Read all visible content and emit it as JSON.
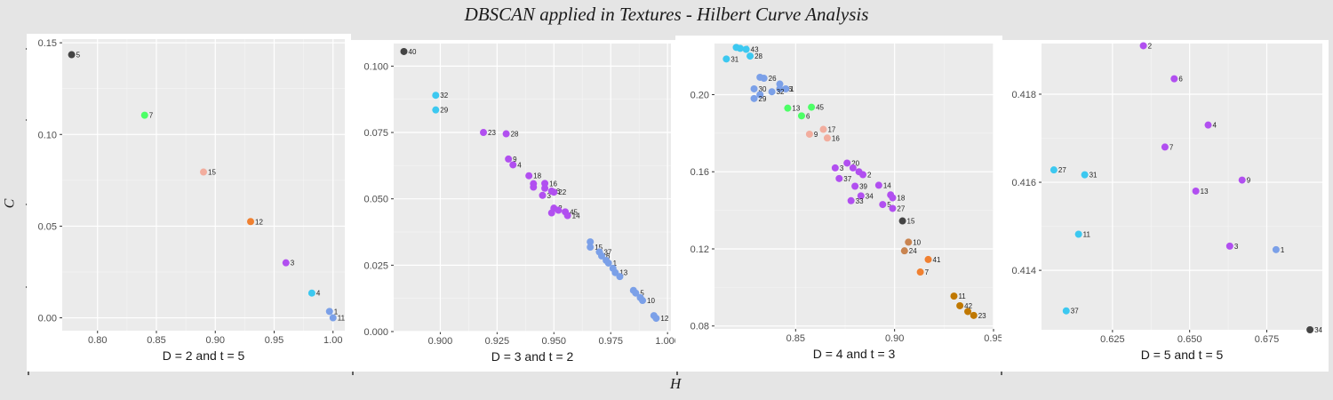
{
  "figure": {
    "title": "DBSCAN applied in Textures - Hilbert Curve Analysis",
    "xlabel": "H",
    "ylabel": "C"
  },
  "chart_data": [
    {
      "type": "scatter",
      "xlabel": "D = 2 and t = 5",
      "xlim": [
        0.77,
        1.01
      ],
      "ylim": [
        -0.007,
        0.152
      ],
      "xticks": [
        0.8,
        0.85,
        0.9,
        0.95,
        1.0
      ],
      "xtick_labels": [
        "0.80",
        "0.85",
        "0.90",
        "0.95",
        "1.00"
      ],
      "yticks": [
        0.0,
        0.05,
        0.1,
        0.15
      ],
      "ytick_labels": [
        "0.00",
        "0.05",
        "0.10",
        "0.15"
      ],
      "grid": true,
      "points": [
        {
          "x": 0.778,
          "y": 0.1435,
          "label": "5",
          "color": "#444444"
        },
        {
          "x": 0.84,
          "y": 0.1105,
          "label": "7",
          "color": "#4cff66"
        },
        {
          "x": 0.89,
          "y": 0.0795,
          "label": "15",
          "color": "#f2ad9e"
        },
        {
          "x": 0.93,
          "y": 0.0525,
          "label": "12",
          "color": "#f08030"
        },
        {
          "x": 0.96,
          "y": 0.03,
          "label": "3",
          "color": "#b14ff0"
        },
        {
          "x": 0.982,
          "y": 0.0135,
          "label": "4",
          "color": "#3cc8f0"
        },
        {
          "x": 0.997,
          "y": 0.0035,
          "label": "1",
          "color": "#7ba0e8"
        },
        {
          "x": 1.0,
          "y": 0.0,
          "label": "11",
          "color": "#7ba0e8"
        }
      ]
    },
    {
      "type": "scatter",
      "xlabel": "D = 3 and t = 2",
      "xlim": [
        0.8795,
        1.0015
      ],
      "ylim": [
        0.0,
        0.1085
      ],
      "xticks": [
        0.9,
        0.925,
        0.95,
        0.975,
        1.0
      ],
      "xtick_labels": [
        "0.900",
        "0.925",
        "0.950",
        "0.975",
        "1.000"
      ],
      "yticks": [
        0.0,
        0.025,
        0.05,
        0.075,
        0.1
      ],
      "ytick_labels": [
        "0.000",
        "0.025",
        "0.050",
        "0.075",
        "0.100"
      ],
      "grid": true,
      "points": [
        {
          "x": 0.884,
          "y": 0.1055,
          "label": "40",
          "color": "#444444"
        },
        {
          "x": 0.898,
          "y": 0.089,
          "label": "32",
          "color": "#3cc8f0"
        },
        {
          "x": 0.898,
          "y": 0.0835,
          "label": "29",
          "color": "#3cc8f0"
        },
        {
          "x": 0.919,
          "y": 0.075,
          "label": "23",
          "color": "#b14ff0"
        },
        {
          "x": 0.929,
          "y": 0.0745,
          "label": "28",
          "color": "#b14ff0"
        },
        {
          "x": 0.93,
          "y": 0.065,
          "label": "9",
          "color": "#b14ff0"
        },
        {
          "x": 0.932,
          "y": 0.0628,
          "label": "4",
          "color": "#b14ff0"
        },
        {
          "x": 0.939,
          "y": 0.0587,
          "label": "18",
          "color": "#b14ff0"
        },
        {
          "x": 0.941,
          "y": 0.0557,
          "label": "",
          "color": "#b14ff0"
        },
        {
          "x": 0.941,
          "y": 0.0544,
          "label": "",
          "color": "#b14ff0"
        },
        {
          "x": 0.946,
          "y": 0.0558,
          "label": "16",
          "color": "#b14ff0"
        },
        {
          "x": 0.946,
          "y": 0.054,
          "label": "",
          "color": "#b14ff0"
        },
        {
          "x": 0.945,
          "y": 0.0513,
          "label": "3",
          "color": "#b14ff0"
        },
        {
          "x": 0.949,
          "y": 0.0529,
          "label": "6",
          "color": "#b14ff0"
        },
        {
          "x": 0.95,
          "y": 0.0525,
          "label": "22",
          "color": "#b14ff0"
        },
        {
          "x": 0.95,
          "y": 0.0465,
          "label": "2",
          "color": "#b14ff0"
        },
        {
          "x": 0.949,
          "y": 0.0447,
          "label": "",
          "color": "#b14ff0"
        },
        {
          "x": 0.952,
          "y": 0.0457,
          "label": "",
          "color": "#b14ff0"
        },
        {
          "x": 0.955,
          "y": 0.0451,
          "label": "45",
          "color": "#b14ff0"
        },
        {
          "x": 0.956,
          "y": 0.0437,
          "label": "14",
          "color": "#b14ff0"
        },
        {
          "x": 0.966,
          "y": 0.0338,
          "label": "",
          "color": "#7ba0e8"
        },
        {
          "x": 0.966,
          "y": 0.0318,
          "label": "15",
          "color": "#7ba0e8"
        },
        {
          "x": 0.97,
          "y": 0.03,
          "label": "37",
          "color": "#7ba0e8"
        },
        {
          "x": 0.971,
          "y": 0.0285,
          "label": "6",
          "color": "#7ba0e8"
        },
        {
          "x": 0.973,
          "y": 0.0268,
          "label": "",
          "color": "#7ba0e8"
        },
        {
          "x": 0.974,
          "y": 0.0258,
          "label": "1",
          "color": "#7ba0e8"
        },
        {
          "x": 0.976,
          "y": 0.0238,
          "label": "",
          "color": "#7ba0e8"
        },
        {
          "x": 0.977,
          "y": 0.0222,
          "label": "13",
          "color": "#7ba0e8"
        },
        {
          "x": 0.979,
          "y": 0.0207,
          "label": "",
          "color": "#7ba0e8"
        },
        {
          "x": 0.985,
          "y": 0.0155,
          "label": "",
          "color": "#7ba0e8"
        },
        {
          "x": 0.986,
          "y": 0.0145,
          "label": "5",
          "color": "#7ba0e8"
        },
        {
          "x": 0.988,
          "y": 0.0128,
          "label": "",
          "color": "#7ba0e8"
        },
        {
          "x": 0.989,
          "y": 0.0117,
          "label": "10",
          "color": "#7ba0e8"
        },
        {
          "x": 0.994,
          "y": 0.006,
          "label": "",
          "color": "#7ba0e8"
        },
        {
          "x": 0.995,
          "y": 0.005,
          "label": "12",
          "color": "#7ba0e8"
        }
      ]
    },
    {
      "type": "scatter",
      "xlabel": "D = 4 and t = 3",
      "xlim": [
        0.809,
        0.95
      ],
      "ylim": [
        0.0785,
        0.2265
      ],
      "xticks": [
        0.85,
        0.9,
        0.95
      ],
      "xtick_labels": [
        "0.85",
        "0.90",
        "0.95"
      ],
      "yticks": [
        0.08,
        0.12,
        0.16,
        0.2
      ],
      "ytick_labels": [
        "0.08",
        "0.12",
        "0.16",
        "0.20"
      ],
      "grid": true,
      "points": [
        {
          "x": 0.82,
          "y": 0.2245,
          "label": "",
          "color": "#3cc8f0"
        },
        {
          "x": 0.822,
          "y": 0.224,
          "label": "4",
          "color": "#3cc8f0"
        },
        {
          "x": 0.825,
          "y": 0.2235,
          "label": "43",
          "color": "#3cc8f0"
        },
        {
          "x": 0.815,
          "y": 0.2185,
          "label": "31",
          "color": "#3cc8f0"
        },
        {
          "x": 0.827,
          "y": 0.22,
          "label": "28",
          "color": "#3cc8f0"
        },
        {
          "x": 0.832,
          "y": 0.209,
          "label": "",
          "color": "#7ba0e8"
        },
        {
          "x": 0.834,
          "y": 0.2085,
          "label": "26",
          "color": "#7ba0e8"
        },
        {
          "x": 0.842,
          "y": 0.2055,
          "label": "",
          "color": "#7ba0e8"
        },
        {
          "x": 0.842,
          "y": 0.203,
          "label": "36",
          "color": "#7ba0e8"
        },
        {
          "x": 0.845,
          "y": 0.203,
          "label": "1",
          "color": "#7ba0e8"
        },
        {
          "x": 0.829,
          "y": 0.203,
          "label": "30",
          "color": "#7ba0e8"
        },
        {
          "x": 0.838,
          "y": 0.2015,
          "label": "32",
          "color": "#7ba0e8"
        },
        {
          "x": 0.832,
          "y": 0.2,
          "label": "",
          "color": "#7ba0e8"
        },
        {
          "x": 0.829,
          "y": 0.198,
          "label": "29",
          "color": "#7ba0e8"
        },
        {
          "x": 0.846,
          "y": 0.193,
          "label": "13",
          "color": "#4cff66"
        },
        {
          "x": 0.858,
          "y": 0.1935,
          "label": "45",
          "color": "#4cff66"
        },
        {
          "x": 0.853,
          "y": 0.189,
          "label": "6",
          "color": "#4cff66"
        },
        {
          "x": 0.864,
          "y": 0.182,
          "label": "17",
          "color": "#f2ad9e"
        },
        {
          "x": 0.857,
          "y": 0.1795,
          "label": "9",
          "color": "#f2ad9e"
        },
        {
          "x": 0.866,
          "y": 0.1775,
          "label": "16",
          "color": "#f2ad9e"
        },
        {
          "x": 0.876,
          "y": 0.1645,
          "label": "20",
          "color": "#b14ff0"
        },
        {
          "x": 0.879,
          "y": 0.162,
          "label": "",
          "color": "#b14ff0"
        },
        {
          "x": 0.87,
          "y": 0.162,
          "label": "3",
          "color": "#b14ff0"
        },
        {
          "x": 0.882,
          "y": 0.16,
          "label": "",
          "color": "#b14ff0"
        },
        {
          "x": 0.884,
          "y": 0.1585,
          "label": "2",
          "color": "#b14ff0"
        },
        {
          "x": 0.872,
          "y": 0.1565,
          "label": "37",
          "color": "#b14ff0"
        },
        {
          "x": 0.892,
          "y": 0.153,
          "label": "14",
          "color": "#b14ff0"
        },
        {
          "x": 0.88,
          "y": 0.1525,
          "label": "39",
          "color": "#b14ff0"
        },
        {
          "x": 0.898,
          "y": 0.148,
          "label": "",
          "color": "#b14ff0"
        },
        {
          "x": 0.899,
          "y": 0.1465,
          "label": "18",
          "color": "#b14ff0"
        },
        {
          "x": 0.883,
          "y": 0.1475,
          "label": "34",
          "color": "#b14ff0"
        },
        {
          "x": 0.878,
          "y": 0.145,
          "label": "33",
          "color": "#b14ff0"
        },
        {
          "x": 0.894,
          "y": 0.143,
          "label": "5",
          "color": "#b14ff0"
        },
        {
          "x": 0.899,
          "y": 0.141,
          "label": "27",
          "color": "#b14ff0"
        },
        {
          "x": 0.904,
          "y": 0.1345,
          "label": "15",
          "color": "#444444"
        },
        {
          "x": 0.907,
          "y": 0.1235,
          "label": "10",
          "color": "#c98450"
        },
        {
          "x": 0.905,
          "y": 0.119,
          "label": "24",
          "color": "#c98450"
        },
        {
          "x": 0.917,
          "y": 0.1145,
          "label": "41",
          "color": "#f08030"
        },
        {
          "x": 0.913,
          "y": 0.108,
          "label": "7",
          "color": "#f08030"
        },
        {
          "x": 0.93,
          "y": 0.0955,
          "label": "11",
          "color": "#c07800"
        },
        {
          "x": 0.933,
          "y": 0.0905,
          "label": "42",
          "color": "#c07800"
        },
        {
          "x": 0.937,
          "y": 0.0875,
          "label": "",
          "color": "#c07800"
        },
        {
          "x": 0.94,
          "y": 0.0855,
          "label": "23",
          "color": "#c07800"
        }
      ]
    },
    {
      "type": "scatter",
      "xlabel": "D = 5 and t = 5",
      "xlim": [
        0.602,
        0.693
      ],
      "ylim": [
        0.41265,
        0.41915
      ],
      "xticks": [
        0.625,
        0.65,
        0.675
      ],
      "xtick_labels": [
        "0.625",
        "0.650",
        "0.675"
      ],
      "yticks": [
        0.414,
        0.416,
        0.418
      ],
      "ytick_labels": [
        "0.414",
        "0.416",
        "0.418"
      ],
      "grid": true,
      "points": [
        {
          "x": 0.635,
          "y": 0.4191,
          "label": "2",
          "color": "#b14ff0"
        },
        {
          "x": 0.645,
          "y": 0.41835,
          "label": "6",
          "color": "#b14ff0"
        },
        {
          "x": 0.656,
          "y": 0.4173,
          "label": "4",
          "color": "#b14ff0"
        },
        {
          "x": 0.642,
          "y": 0.4168,
          "label": "7",
          "color": "#b14ff0"
        },
        {
          "x": 0.667,
          "y": 0.41605,
          "label": "9",
          "color": "#b14ff0"
        },
        {
          "x": 0.652,
          "y": 0.4158,
          "label": "13",
          "color": "#b14ff0"
        },
        {
          "x": 0.663,
          "y": 0.41455,
          "label": "3",
          "color": "#b14ff0"
        },
        {
          "x": 0.606,
          "y": 0.41628,
          "label": "27",
          "color": "#3cc8f0"
        },
        {
          "x": 0.616,
          "y": 0.41617,
          "label": "31",
          "color": "#3cc8f0"
        },
        {
          "x": 0.614,
          "y": 0.41482,
          "label": "11",
          "color": "#3cc8f0"
        },
        {
          "x": 0.61,
          "y": 0.41308,
          "label": "37",
          "color": "#3cc8f0"
        },
        {
          "x": 0.678,
          "y": 0.41447,
          "label": "1",
          "color": "#7ba0e8"
        },
        {
          "x": 0.689,
          "y": 0.41265,
          "label": "34",
          "color": "#444444"
        }
      ]
    }
  ]
}
